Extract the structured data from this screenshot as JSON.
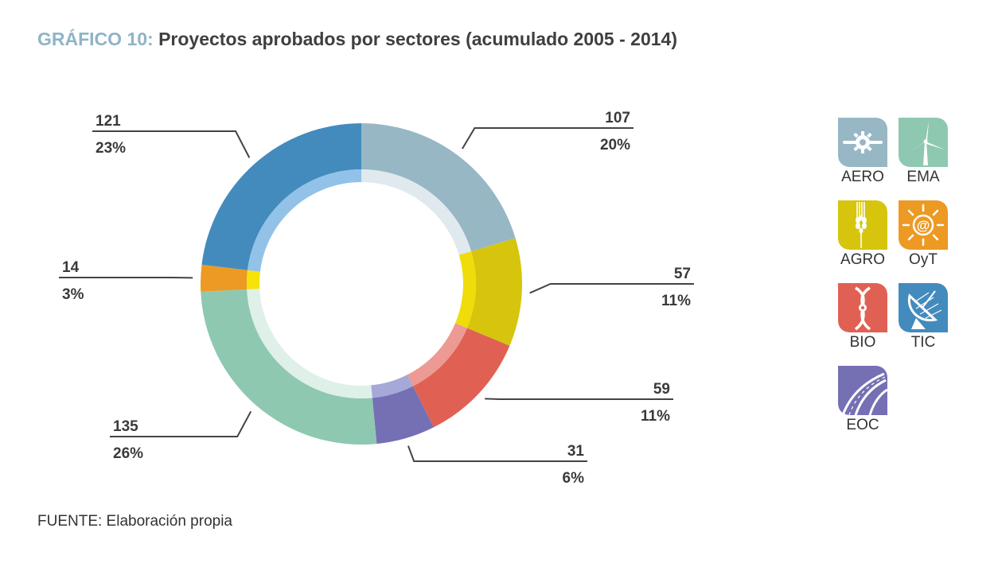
{
  "title": {
    "lead": "GRÁFICO 10:",
    "text": "Proyectos aprobados por sectores (acumulado 2005 - 2014)"
  },
  "source": "FUENTE: Elaboración propia",
  "chart_data": {
    "type": "donut",
    "title": "Proyectos aprobados por sectores (acumulado 2005 - 2014)",
    "series": [
      {
        "name": "AERO",
        "value": 107,
        "percent": "20%",
        "color": "#97b7c5",
        "inner_color": "#dfe9ee"
      },
      {
        "name": "AGRO",
        "value": 57,
        "percent": "11%",
        "color": "#d6c50c",
        "inner_color": "#efdc0a"
      },
      {
        "name": "BIO",
        "value": 59,
        "percent": "11%",
        "color": "#e06154",
        "inner_color": "#ec9a93"
      },
      {
        "name": "EOC",
        "value": 31,
        "percent": "6%",
        "color": "#7570b4",
        "inner_color": "#a5a8d8"
      },
      {
        "name": "EMA",
        "value": 135,
        "percent": "26%",
        "color": "#8ec8b1",
        "inner_color": "#dff0e8"
      },
      {
        "name": "OyT",
        "value": 14,
        "percent": "3%",
        "color": "#ec9a23",
        "inner_color": "#f6e30a"
      },
      {
        "name": "TIC",
        "value": 121,
        "percent": "23%",
        "color": "#438bbd",
        "inner_color": "#92c2e7"
      }
    ]
  },
  "legend": [
    {
      "name": "AERO",
      "color": "#97b7c5",
      "icon": "gear-icon"
    },
    {
      "name": "EMA",
      "color": "#8ec8b1",
      "icon": "wind-turbine-icon"
    },
    {
      "name": "AGRO",
      "color": "#d6c50c",
      "icon": "wheat-icon"
    },
    {
      "name": "OyT",
      "color": "#ec9a23",
      "icon": "sun-at-icon"
    },
    {
      "name": "BIO",
      "color": "#e06154",
      "icon": "dna-icon"
    },
    {
      "name": "TIC",
      "color": "#438bbd",
      "icon": "satellite-dish-icon"
    },
    {
      "name": "EOC",
      "color": "#7570b4",
      "icon": "road-icon"
    }
  ]
}
